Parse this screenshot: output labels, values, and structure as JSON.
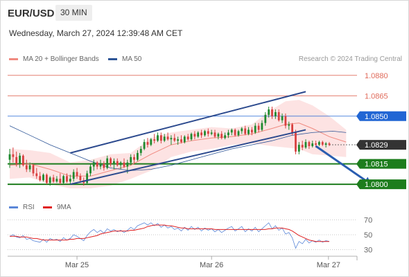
{
  "header": {
    "symbol": "EUR/USD",
    "timeframe": "30 MIN",
    "datetime": "Wednesday, March 27, 2024 12:39:48 AM CET"
  },
  "legend": {
    "ma20_label": "MA 20 + Bollinger Bands",
    "ma50_label": "MA 50",
    "ma20_color": "#f08a80",
    "ma50_color": "#2c5496",
    "credit": "Research © 2024 Trading Central"
  },
  "rsi_legend": {
    "rsi_label": "RSI",
    "ma9_label": "9MA",
    "rsi_color": "#5b87d8",
    "ma9_color": "#e02020"
  },
  "colors": {
    "bull": "#1d8a2e",
    "bear": "#d94040",
    "green_level": "#1d7d1d",
    "blue_level": "#2166d4",
    "red_level": "#e06a5a",
    "current": "#333333",
    "channel": "#2c4a8e",
    "band_fill": "#fde3e3"
  },
  "chart_data": [
    {
      "type": "candlestick",
      "title": "EUR/USD",
      "timeframe": "30 MIN",
      "ylim": [
        1.0797,
        1.0886
      ],
      "x_ticks": [
        "Mar 25",
        "Mar 26",
        "Mar 27"
      ],
      "ohlc": [
        [
          1.0818,
          1.0826,
          1.0812,
          1.0822
        ],
        [
          1.0822,
          1.0827,
          1.0816,
          1.082
        ],
        [
          1.082,
          1.0824,
          1.0813,
          1.0815
        ],
        [
          1.0815,
          1.0823,
          1.0812,
          1.0821
        ],
        [
          1.0821,
          1.0822,
          1.0813,
          1.0814
        ],
        [
          1.0814,
          1.0818,
          1.0809,
          1.0811
        ],
        [
          1.0811,
          1.0816,
          1.0809,
          1.0814
        ],
        [
          1.0814,
          1.0815,
          1.0806,
          1.0808
        ],
        [
          1.0808,
          1.0812,
          1.0804,
          1.0806
        ],
        [
          1.0806,
          1.0809,
          1.0802,
          1.0803
        ],
        [
          1.0803,
          1.0808,
          1.0802,
          1.0807
        ],
        [
          1.0807,
          1.0808,
          1.08,
          1.0801
        ],
        [
          1.0801,
          1.0806,
          1.0799,
          1.0805
        ],
        [
          1.0805,
          1.0807,
          1.0801,
          1.0802
        ],
        [
          1.0802,
          1.0806,
          1.0801,
          1.0804
        ],
        [
          1.0804,
          1.0808,
          1.08,
          1.0801
        ],
        [
          1.0801,
          1.0807,
          1.08,
          1.0806
        ],
        [
          1.0806,
          1.0808,
          1.0801,
          1.0802
        ],
        [
          1.0802,
          1.0807,
          1.08,
          1.0804
        ],
        [
          1.0804,
          1.0811,
          1.0802,
          1.0809
        ],
        [
          1.0809,
          1.0812,
          1.0804,
          1.0806
        ],
        [
          1.0806,
          1.0808,
          1.0801,
          1.0803
        ],
        [
          1.0803,
          1.0805,
          1.0799,
          1.0801
        ],
        [
          1.0801,
          1.081,
          1.08,
          1.0808
        ],
        [
          1.0808,
          1.0815,
          1.0806,
          1.0813
        ],
        [
          1.0813,
          1.0818,
          1.081,
          1.0816
        ],
        [
          1.0816,
          1.0817,
          1.0811,
          1.0813
        ],
        [
          1.0813,
          1.0818,
          1.0811,
          1.0815
        ],
        [
          1.0815,
          1.0817,
          1.081,
          1.0812
        ],
        [
          1.0812,
          1.0821,
          1.0811,
          1.0819
        ],
        [
          1.0819,
          1.082,
          1.0813,
          1.0815
        ],
        [
          1.0815,
          1.0819,
          1.0811,
          1.0817
        ],
        [
          1.0817,
          1.0819,
          1.0813,
          1.0814
        ],
        [
          1.0814,
          1.0817,
          1.0811,
          1.0816
        ],
        [
          1.0816,
          1.0819,
          1.0812,
          1.0813
        ],
        [
          1.0813,
          1.0818,
          1.0808,
          1.0816
        ],
        [
          1.0816,
          1.0822,
          1.0814,
          1.082
        ],
        [
          1.082,
          1.0822,
          1.0815,
          1.0818
        ],
        [
          1.0818,
          1.0825,
          1.0817,
          1.0823
        ],
        [
          1.0823,
          1.0828,
          1.0821,
          1.0826
        ],
        [
          1.0826,
          1.0833,
          1.0825,
          1.0831
        ],
        [
          1.0831,
          1.0834,
          1.0827,
          1.0829
        ],
        [
          1.0829,
          1.0834,
          1.0828,
          1.0833
        ],
        [
          1.0833,
          1.0837,
          1.083,
          1.0832
        ],
        [
          1.0832,
          1.0838,
          1.0831,
          1.0836
        ],
        [
          1.0836,
          1.0838,
          1.083,
          1.0832
        ],
        [
          1.0832,
          1.0837,
          1.0831,
          1.0835
        ],
        [
          1.0835,
          1.0838,
          1.0832,
          1.0833
        ],
        [
          1.0833,
          1.0836,
          1.0829,
          1.0834
        ],
        [
          1.0834,
          1.0837,
          1.0831,
          1.0832
        ],
        [
          1.0832,
          1.0835,
          1.0829,
          1.0833
        ],
        [
          1.0833,
          1.0836,
          1.083,
          1.0831
        ],
        [
          1.0831,
          1.0836,
          1.083,
          1.0835
        ],
        [
          1.0835,
          1.0837,
          1.0832,
          1.0833
        ],
        [
          1.0833,
          1.0838,
          1.0832,
          1.0837
        ],
        [
          1.0837,
          1.0839,
          1.0833,
          1.0835
        ],
        [
          1.0835,
          1.0839,
          1.0834,
          1.0838
        ],
        [
          1.0838,
          1.084,
          1.0834,
          1.0836
        ],
        [
          1.0836,
          1.084,
          1.0835,
          1.0839
        ],
        [
          1.0839,
          1.0841,
          1.0835,
          1.0837
        ],
        [
          1.0837,
          1.084,
          1.0836,
          1.0838
        ],
        [
          1.0838,
          1.084,
          1.0834,
          1.0835
        ],
        [
          1.0835,
          1.0838,
          1.0833,
          1.0837
        ],
        [
          1.0837,
          1.0839,
          1.0833,
          1.0834
        ],
        [
          1.0834,
          1.0838,
          1.0833,
          1.0836
        ],
        [
          1.0836,
          1.084,
          1.0834,
          1.0838
        ],
        [
          1.0838,
          1.0841,
          1.0836,
          1.084
        ],
        [
          1.084,
          1.0841,
          1.0835,
          1.0836
        ],
        [
          1.0836,
          1.084,
          1.0835,
          1.0839
        ],
        [
          1.0839,
          1.0842,
          1.0837,
          1.0841
        ],
        [
          1.0841,
          1.0843,
          1.0836,
          1.0837
        ],
        [
          1.0837,
          1.0842,
          1.0836,
          1.084
        ],
        [
          1.084,
          1.0842,
          1.0836,
          1.0838
        ],
        [
          1.0838,
          1.0845,
          1.0837,
          1.0843
        ],
        [
          1.0843,
          1.0845,
          1.0838,
          1.084
        ],
        [
          1.084,
          1.0847,
          1.0839,
          1.0845
        ],
        [
          1.0845,
          1.0853,
          1.0843,
          1.0851
        ],
        [
          1.0851,
          1.0857,
          1.0849,
          1.0855
        ],
        [
          1.0855,
          1.0857,
          1.0848,
          1.085
        ],
        [
          1.085,
          1.0855,
          1.0848,
          1.0853
        ],
        [
          1.0853,
          1.0855,
          1.0846,
          1.0847
        ],
        [
          1.0847,
          1.0852,
          1.0845,
          1.085
        ],
        [
          1.085,
          1.0852,
          1.0841,
          1.0843
        ],
        [
          1.0843,
          1.0846,
          1.084,
          1.0844
        ],
        [
          1.0844,
          1.0845,
          1.0836,
          1.0838
        ],
        [
          1.0838,
          1.084,
          1.0822,
          1.0824
        ],
        [
          1.0824,
          1.0831,
          1.0822,
          1.0829
        ],
        [
          1.0829,
          1.0832,
          1.0825,
          1.0827
        ],
        [
          1.0827,
          1.0833,
          1.0826,
          1.0831
        ],
        [
          1.0831,
          1.0832,
          1.0826,
          1.0828
        ],
        [
          1.0828,
          1.0832,
          1.0827,
          1.083
        ],
        [
          1.083,
          1.0832,
          1.0827,
          1.0829
        ],
        [
          1.0829,
          1.0832,
          1.0828,
          1.0831
        ],
        [
          1.0831,
          1.0832,
          1.0828,
          1.0829
        ],
        [
          1.0829,
          1.0831,
          1.0827,
          1.083
        ],
        [
          1.083,
          1.0831,
          1.0828,
          1.0829
        ]
      ],
      "ma20": [
        [
          0,
          1.0814
        ],
        [
          6,
          1.0815
        ],
        [
          12,
          1.0811
        ],
        [
          18,
          1.0806
        ],
        [
          24,
          1.0806
        ],
        [
          30,
          1.081
        ],
        [
          36,
          1.0814
        ],
        [
          42,
          1.0822
        ],
        [
          48,
          1.0829
        ],
        [
          54,
          1.0832
        ],
        [
          60,
          1.0834
        ],
        [
          66,
          1.0835
        ],
        [
          72,
          1.0837
        ],
        [
          78,
          1.0841
        ],
        [
          82,
          1.0844
        ],
        [
          86,
          1.0845
        ],
        [
          90,
          1.0841
        ],
        [
          95,
          1.0835
        ],
        [
          100,
          1.0831
        ]
      ],
      "bb_upper": [
        [
          0,
          1.0826
        ],
        [
          6,
          1.0825
        ],
        [
          12,
          1.0823
        ],
        [
          18,
          1.0816
        ],
        [
          24,
          1.0818
        ],
        [
          30,
          1.0822
        ],
        [
          36,
          1.0823
        ],
        [
          42,
          1.0834
        ],
        [
          48,
          1.0838
        ],
        [
          54,
          1.084
        ],
        [
          60,
          1.0842
        ],
        [
          66,
          1.0841
        ],
        [
          72,
          1.0844
        ],
        [
          78,
          1.0855
        ],
        [
          82,
          1.0861
        ],
        [
          86,
          1.0862
        ],
        [
          90,
          1.0858
        ],
        [
          95,
          1.085
        ],
        [
          100,
          1.084
        ]
      ],
      "bb_lower": [
        [
          0,
          1.0804
        ],
        [
          6,
          1.0805
        ],
        [
          12,
          1.08
        ],
        [
          18,
          1.0797
        ],
        [
          24,
          1.0797
        ],
        [
          30,
          1.0799
        ],
        [
          36,
          1.0804
        ],
        [
          42,
          1.081
        ],
        [
          48,
          1.082
        ],
        [
          54,
          1.0824
        ],
        [
          60,
          1.0826
        ],
        [
          66,
          1.0829
        ],
        [
          72,
          1.083
        ],
        [
          78,
          1.0828
        ],
        [
          82,
          1.0827
        ],
        [
          86,
          1.0826
        ],
        [
          90,
          1.0822
        ],
        [
          95,
          1.0821
        ],
        [
          100,
          1.082
        ]
      ],
      "ma50": [
        [
          0,
          1.0843
        ],
        [
          6,
          1.0836
        ],
        [
          12,
          1.0829
        ],
        [
          18,
          1.0823
        ],
        [
          24,
          1.0817
        ],
        [
          30,
          1.0812
        ],
        [
          36,
          1.081
        ],
        [
          42,
          1.0811
        ],
        [
          48,
          1.0814
        ],
        [
          54,
          1.0818
        ],
        [
          60,
          1.0822
        ],
        [
          66,
          1.0826
        ],
        [
          72,
          1.0829
        ],
        [
          78,
          1.0832
        ],
        [
          84,
          1.0836
        ],
        [
          90,
          1.0838
        ],
        [
          96,
          1.0839
        ],
        [
          100,
          1.0838
        ]
      ],
      "channel_upper": [
        [
          18,
          1.0823
        ],
        [
          88,
          1.0868
        ]
      ],
      "channel_lower": [
        [
          18,
          1.08
        ],
        [
          88,
          1.084
        ]
      ],
      "projection": [
        [
          91,
          1.0828
        ],
        [
          100,
          1.08
        ]
      ],
      "current_price": 1.0829,
      "levels": [
        {
          "price": 1.088,
          "label": "1.0880",
          "kind": "resistance"
        },
        {
          "price": 1.0865,
          "label": "1.0865",
          "kind": "resistance"
        },
        {
          "price": 1.085,
          "label": "1.0850",
          "kind": "pivot"
        },
        {
          "price": 1.0829,
          "label": "1.0829",
          "kind": "current"
        },
        {
          "price": 1.0815,
          "label": "1.0815",
          "kind": "support"
        },
        {
          "price": 1.08,
          "label": "1.0800",
          "kind": "support"
        }
      ]
    },
    {
      "type": "line",
      "title": "RSI",
      "ylim": [
        25,
        75
      ],
      "y_ticks": [
        70,
        50,
        30
      ],
      "series": [
        {
          "name": "RSI",
          "values": [
            48,
            50,
            47,
            46,
            49,
            44,
            45,
            42,
            41,
            40,
            44,
            40,
            45,
            43,
            44,
            41,
            46,
            43,
            45,
            50,
            48,
            45,
            42,
            49,
            54,
            57,
            53,
            56,
            52,
            58,
            55,
            57,
            54,
            56,
            53,
            56,
            60,
            57,
            62,
            64,
            66,
            63,
            66,
            62,
            65,
            60,
            63,
            59,
            61,
            57,
            59,
            55,
            60,
            56,
            61,
            57,
            60,
            55,
            59,
            56,
            58,
            54,
            57,
            53,
            56,
            59,
            61,
            55,
            58,
            61,
            54,
            58,
            55,
            60,
            54,
            58,
            62,
            66,
            58,
            62,
            56,
            59,
            51,
            53,
            46,
            32,
            41,
            38,
            44,
            39,
            42,
            40,
            43,
            40,
            42,
            41
          ]
        },
        {
          "name": "9MA",
          "values": [
            48,
            48,
            48,
            47,
            47,
            47,
            46,
            45,
            45,
            44,
            43,
            43,
            43,
            43,
            43,
            43,
            43,
            43,
            44,
            44,
            45,
            45,
            45,
            46,
            47,
            48,
            49,
            51,
            52,
            53,
            54,
            55,
            55,
            55,
            55,
            55,
            56,
            56,
            57,
            58,
            59,
            61,
            62,
            63,
            63,
            63,
            63,
            62,
            62,
            61,
            60,
            59,
            59,
            58,
            58,
            58,
            58,
            58,
            58,
            58,
            58,
            57,
            57,
            57,
            57,
            57,
            57,
            57,
            57,
            57,
            57,
            57,
            57,
            57,
            57,
            57,
            57,
            58,
            58,
            59,
            59,
            59,
            58,
            57,
            55,
            52,
            49,
            47,
            45,
            43,
            42,
            41,
            41,
            41,
            41,
            41
          ]
        }
      ]
    }
  ]
}
